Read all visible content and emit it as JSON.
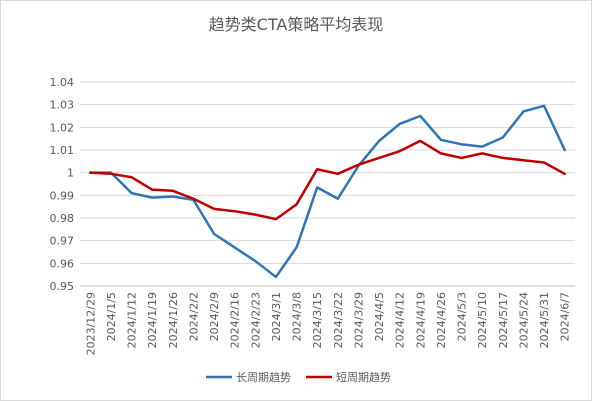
{
  "chart_data": {
    "type": "line",
    "title": "趋势类CTA策略平均表现",
    "xlabel": "",
    "ylabel": "",
    "ylim": [
      0.95,
      1.04
    ],
    "yticks": [
      "0.95",
      "0.96",
      "0.97",
      "0.98",
      "0.99",
      "1",
      "1.01",
      "1.02",
      "1.03",
      "1.04"
    ],
    "categories": [
      "2023/12/29",
      "2024/1/5",
      "2024/1/12",
      "2024/1/19",
      "2024/1/26",
      "2024/2/2",
      "2024/2/9",
      "2024/2/16",
      "2024/2/23",
      "2024/3/1",
      "2024/3/8",
      "2024/3/15",
      "2024/3/22",
      "2024/3/29",
      "2024/4/5",
      "2024/4/12",
      "2024/4/19",
      "2024/4/26",
      "2024/5/3",
      "2024/5/10",
      "2024/5/17",
      "2024/5/24",
      "2024/5/31",
      "2024/6/7"
    ],
    "grid": true,
    "legend_position": "bottom",
    "series": [
      {
        "name": "长周期趋势",
        "color": "#2E75B6",
        "values": [
          1.0,
          1.0,
          0.991,
          0.989,
          0.9895,
          0.988,
          0.973,
          0.967,
          0.961,
          0.954,
          0.967,
          0.9935,
          0.9885,
          1.003,
          1.014,
          1.0215,
          1.025,
          1.0145,
          1.0125,
          1.0115,
          1.0155,
          1.027,
          1.0295,
          1.01
        ]
      },
      {
        "name": "短周期趋势",
        "color": "#C00000",
        "values": [
          1.0,
          0.9995,
          0.998,
          0.9925,
          0.992,
          0.9885,
          0.984,
          0.983,
          0.9815,
          0.9795,
          0.986,
          1.0015,
          0.9995,
          1.0035,
          1.0065,
          1.0095,
          1.014,
          1.0085,
          1.0065,
          1.0085,
          1.0065,
          1.0055,
          1.0045,
          0.9995
        ]
      }
    ]
  }
}
